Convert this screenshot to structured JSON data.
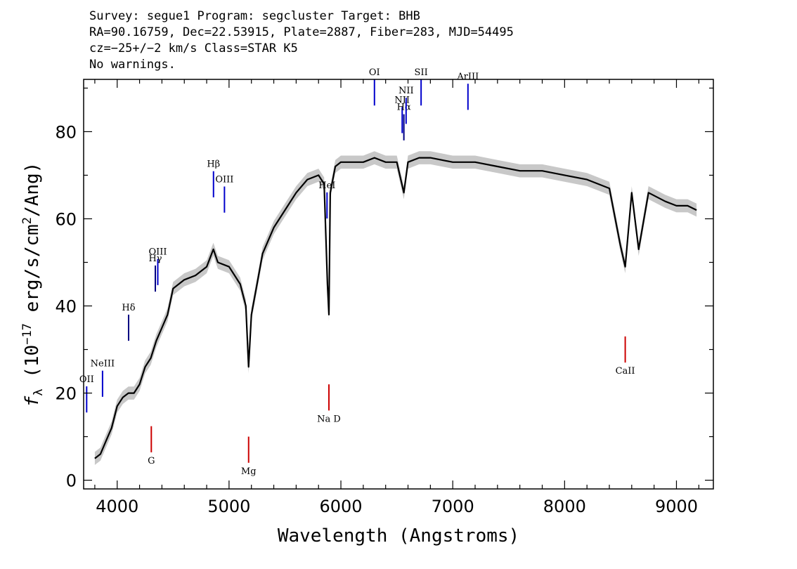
{
  "header": {
    "line1": "Survey: segue1 Program: segcluster Target: BHB",
    "line2": "RA=90.16759, Dec=22.53915, Plate=2887, Fiber=283, MJD=54495",
    "line3": "cz=−25+/−2 km/s Class=STAR K5",
    "line4": "No warnings."
  },
  "chart_data": {
    "type": "line",
    "xlabel": "Wavelength (Angstroms)",
    "ylabel": "f_λ (10^-17 erg/s/cm^2/Ang)",
    "xlim": [
      3700,
      9330
    ],
    "ylim": [
      -2,
      92
    ],
    "x_ticks": [
      4000,
      5000,
      6000,
      7000,
      8000,
      9000
    ],
    "y_ticks": [
      0,
      20,
      40,
      60,
      80
    ],
    "series": [
      {
        "x": [
          3800,
          3850,
          3900,
          3950,
          4000,
          4050,
          4100,
          4150,
          4200,
          4250,
          4300,
          4350,
          4400,
          4450,
          4500,
          4600,
          4700,
          4800,
          4860,
          4900,
          5000,
          5100,
          5150,
          5175,
          5200,
          5250,
          5300,
          5400,
          5500,
          5600,
          5700,
          5800,
          5850,
          5880,
          5893,
          5905,
          5950,
          6000,
          6100,
          6200,
          6300,
          6400,
          6500,
          6563,
          6600,
          6700,
          6800,
          7000,
          7200,
          7400,
          7600,
          7800,
          8000,
          8200,
          8400,
          8498,
          8542,
          8600,
          8662,
          8750,
          8900,
          9000,
          9100,
          9180
        ],
        "y": [
          5,
          6,
          9,
          12,
          17,
          19,
          20,
          20,
          22,
          26,
          28,
          32,
          35,
          38,
          44,
          46,
          47,
          49,
          53,
          50,
          49,
          45,
          40,
          26,
          38,
          45,
          52,
          58,
          62,
          66,
          69,
          70,
          68,
          45,
          38,
          66,
          72,
          73,
          73,
          73,
          74,
          73,
          73,
          66,
          73,
          74,
          74,
          73,
          73,
          72,
          71,
          71,
          70,
          69,
          67,
          54,
          49,
          66,
          53,
          66,
          64,
          63,
          63,
          62
        ]
      }
    ],
    "line_markers": [
      {
        "label": "OII",
        "x": 3727,
        "color": "#0000cc"
      },
      {
        "label": "NeIII",
        "x": 3869,
        "color": "#0000cc"
      },
      {
        "label": "Hδ",
        "x": 4102,
        "color": "#000080"
      },
      {
        "label": "Hγ",
        "x": 4341,
        "color": "#000080"
      },
      {
        "label": "OIII",
        "x": 4363,
        "color": "#0000cc"
      },
      {
        "label": "Hβ",
        "x": 4861,
        "color": "#0000cc"
      },
      {
        "label": "OIII",
        "x": 4959,
        "color": "#0000cc"
      },
      {
        "label": "HeI",
        "x": 5876,
        "color": "#0000cc"
      },
      {
        "label": "OI",
        "x": 6300,
        "color": "#0000cc"
      },
      {
        "label": "NII",
        "x": 6548,
        "color": "#0000cc"
      },
      {
        "label": "Hα",
        "x": 6563,
        "color": "#000080"
      },
      {
        "label": "NII",
        "x": 6583,
        "color": "#0000cc"
      },
      {
        "label": "SII",
        "x": 6717,
        "color": "#0000cc"
      },
      {
        "label": "ArIII",
        "x": 7136,
        "color": "#0000cc"
      },
      {
        "label": "G",
        "x": 4305,
        "color": "#cc0000"
      },
      {
        "label": "Mg",
        "x": 5175,
        "color": "#cc0000"
      },
      {
        "label": "Na D",
        "x": 5893,
        "color": "#cc0000"
      },
      {
        "label": "CaII",
        "x": 8542,
        "color": "#cc0000"
      }
    ]
  }
}
